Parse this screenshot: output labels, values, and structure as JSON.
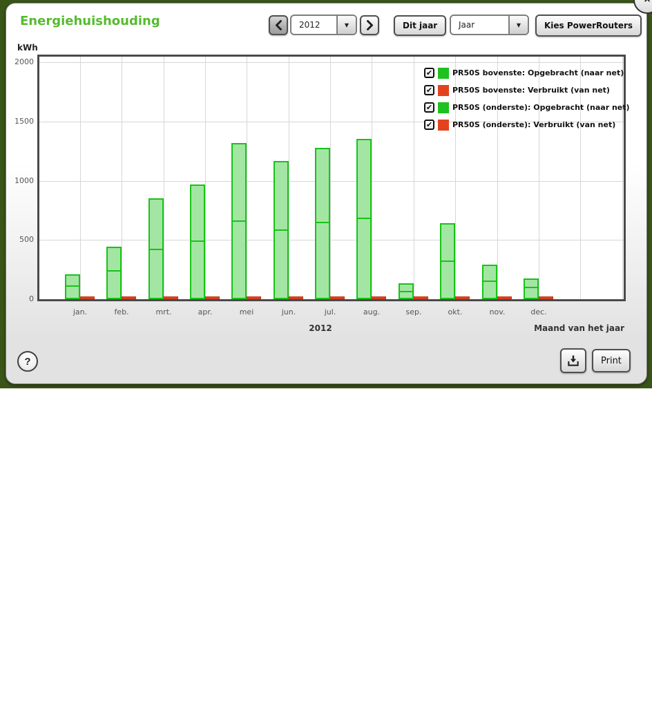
{
  "window": {
    "close_icon": "close-x",
    "close_glyph": "×"
  },
  "header": {
    "title": "Energiehuishouding",
    "prev_icon": "chevron-left",
    "next_icon": "chevron-right",
    "year_value": "2012",
    "dropdown_arrow": "▼",
    "dit_jaar_label": "Dit jaar",
    "period_value": "Jaar",
    "kies_powerrouters_label": "Kies PowerRouters"
  },
  "axis_title": "kWh",
  "chart_data": {
    "type": "bar",
    "stacked": true,
    "categories": [
      "jan.",
      "feb.",
      "mrt.",
      "apr.",
      "mei",
      "jun.",
      "jul.",
      "aug.",
      "sep.",
      "okt.",
      "nov.",
      "dec."
    ],
    "series": [
      {
        "name": "PR50S bovenste: Opgebracht (naar net)",
        "color": "#1fc11f",
        "checked": true,
        "values": [
          105,
          210,
          435,
          485,
          660,
          590,
          635,
          675,
          75,
          325,
          145,
          80
        ]
      },
      {
        "name": "PR50S bovenste: Verbruikt (van net)",
        "color": "#e2431e",
        "checked": true,
        "values": [
          10,
          10,
          10,
          10,
          10,
          10,
          10,
          10,
          10,
          10,
          10,
          10
        ]
      },
      {
        "name": "PR50S (onderste): Opgebracht (naar net)",
        "color": "#1fc11f",
        "checked": true,
        "values": [
          105,
          235,
          415,
          485,
          655,
          575,
          640,
          675,
          60,
          315,
          145,
          95
        ]
      },
      {
        "name": "PR50S (onderste): Verbruikt (van net)",
        "color": "#e2431e",
        "checked": true,
        "values": [
          10,
          10,
          10,
          10,
          10,
          10,
          10,
          10,
          10,
          10,
          10,
          10
        ]
      }
    ],
    "ylim": [
      0,
      2000
    ],
    "yticks": [
      0,
      500,
      1000,
      1500,
      2000
    ],
    "grid": true,
    "legend_position": "top-right",
    "legend_check_glyph": "✔",
    "x_axis_year_label": "2012",
    "x_axis_title": "Maand van het jaar",
    "value_axis_title": "kWh"
  },
  "colors": {
    "title_green": "#56bb2f",
    "green_fill": "#a3e6a3",
    "green_border": "#17c317",
    "red_fill": "#e2431e",
    "red_border": "#c33414",
    "page_background": "#3a5518"
  },
  "footer": {
    "help_label": "?",
    "download_icon": "download-arrow",
    "print_label": "Print"
  }
}
